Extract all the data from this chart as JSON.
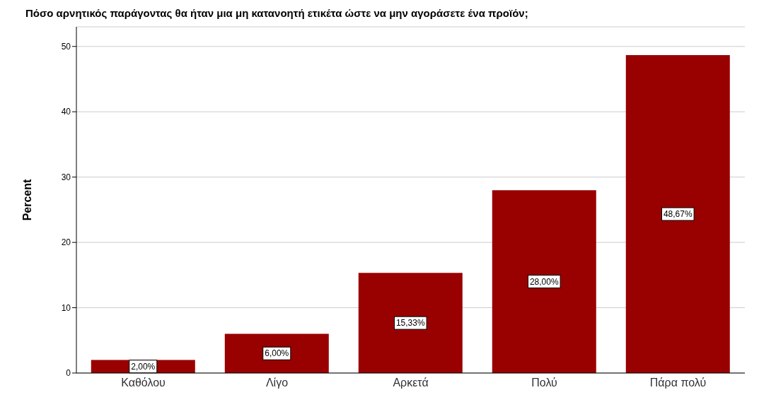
{
  "chart_data": {
    "type": "bar",
    "title": "Πόσο αρνητικός παράγοντας θα ήταν μια μη κατανοητή ετικέτα ώστε να μην αγοράσετε ένα προϊόν;",
    "ylabel": "Percent",
    "categories": [
      "Καθόλου",
      "Λίγο",
      "Αρκετά",
      "Πολύ",
      "Πάρα πολύ"
    ],
    "values": [
      2.0,
      6.0,
      15.33,
      28.0,
      48.67
    ],
    "value_labels": [
      "2,00%",
      "6,00%",
      "15,33%",
      "28,00%",
      "48,67%"
    ],
    "color": "#990000",
    "ylim": [
      0,
      53
    ],
    "yticks": [
      0,
      10,
      20,
      30,
      40,
      50
    ],
    "grid": "y"
  }
}
